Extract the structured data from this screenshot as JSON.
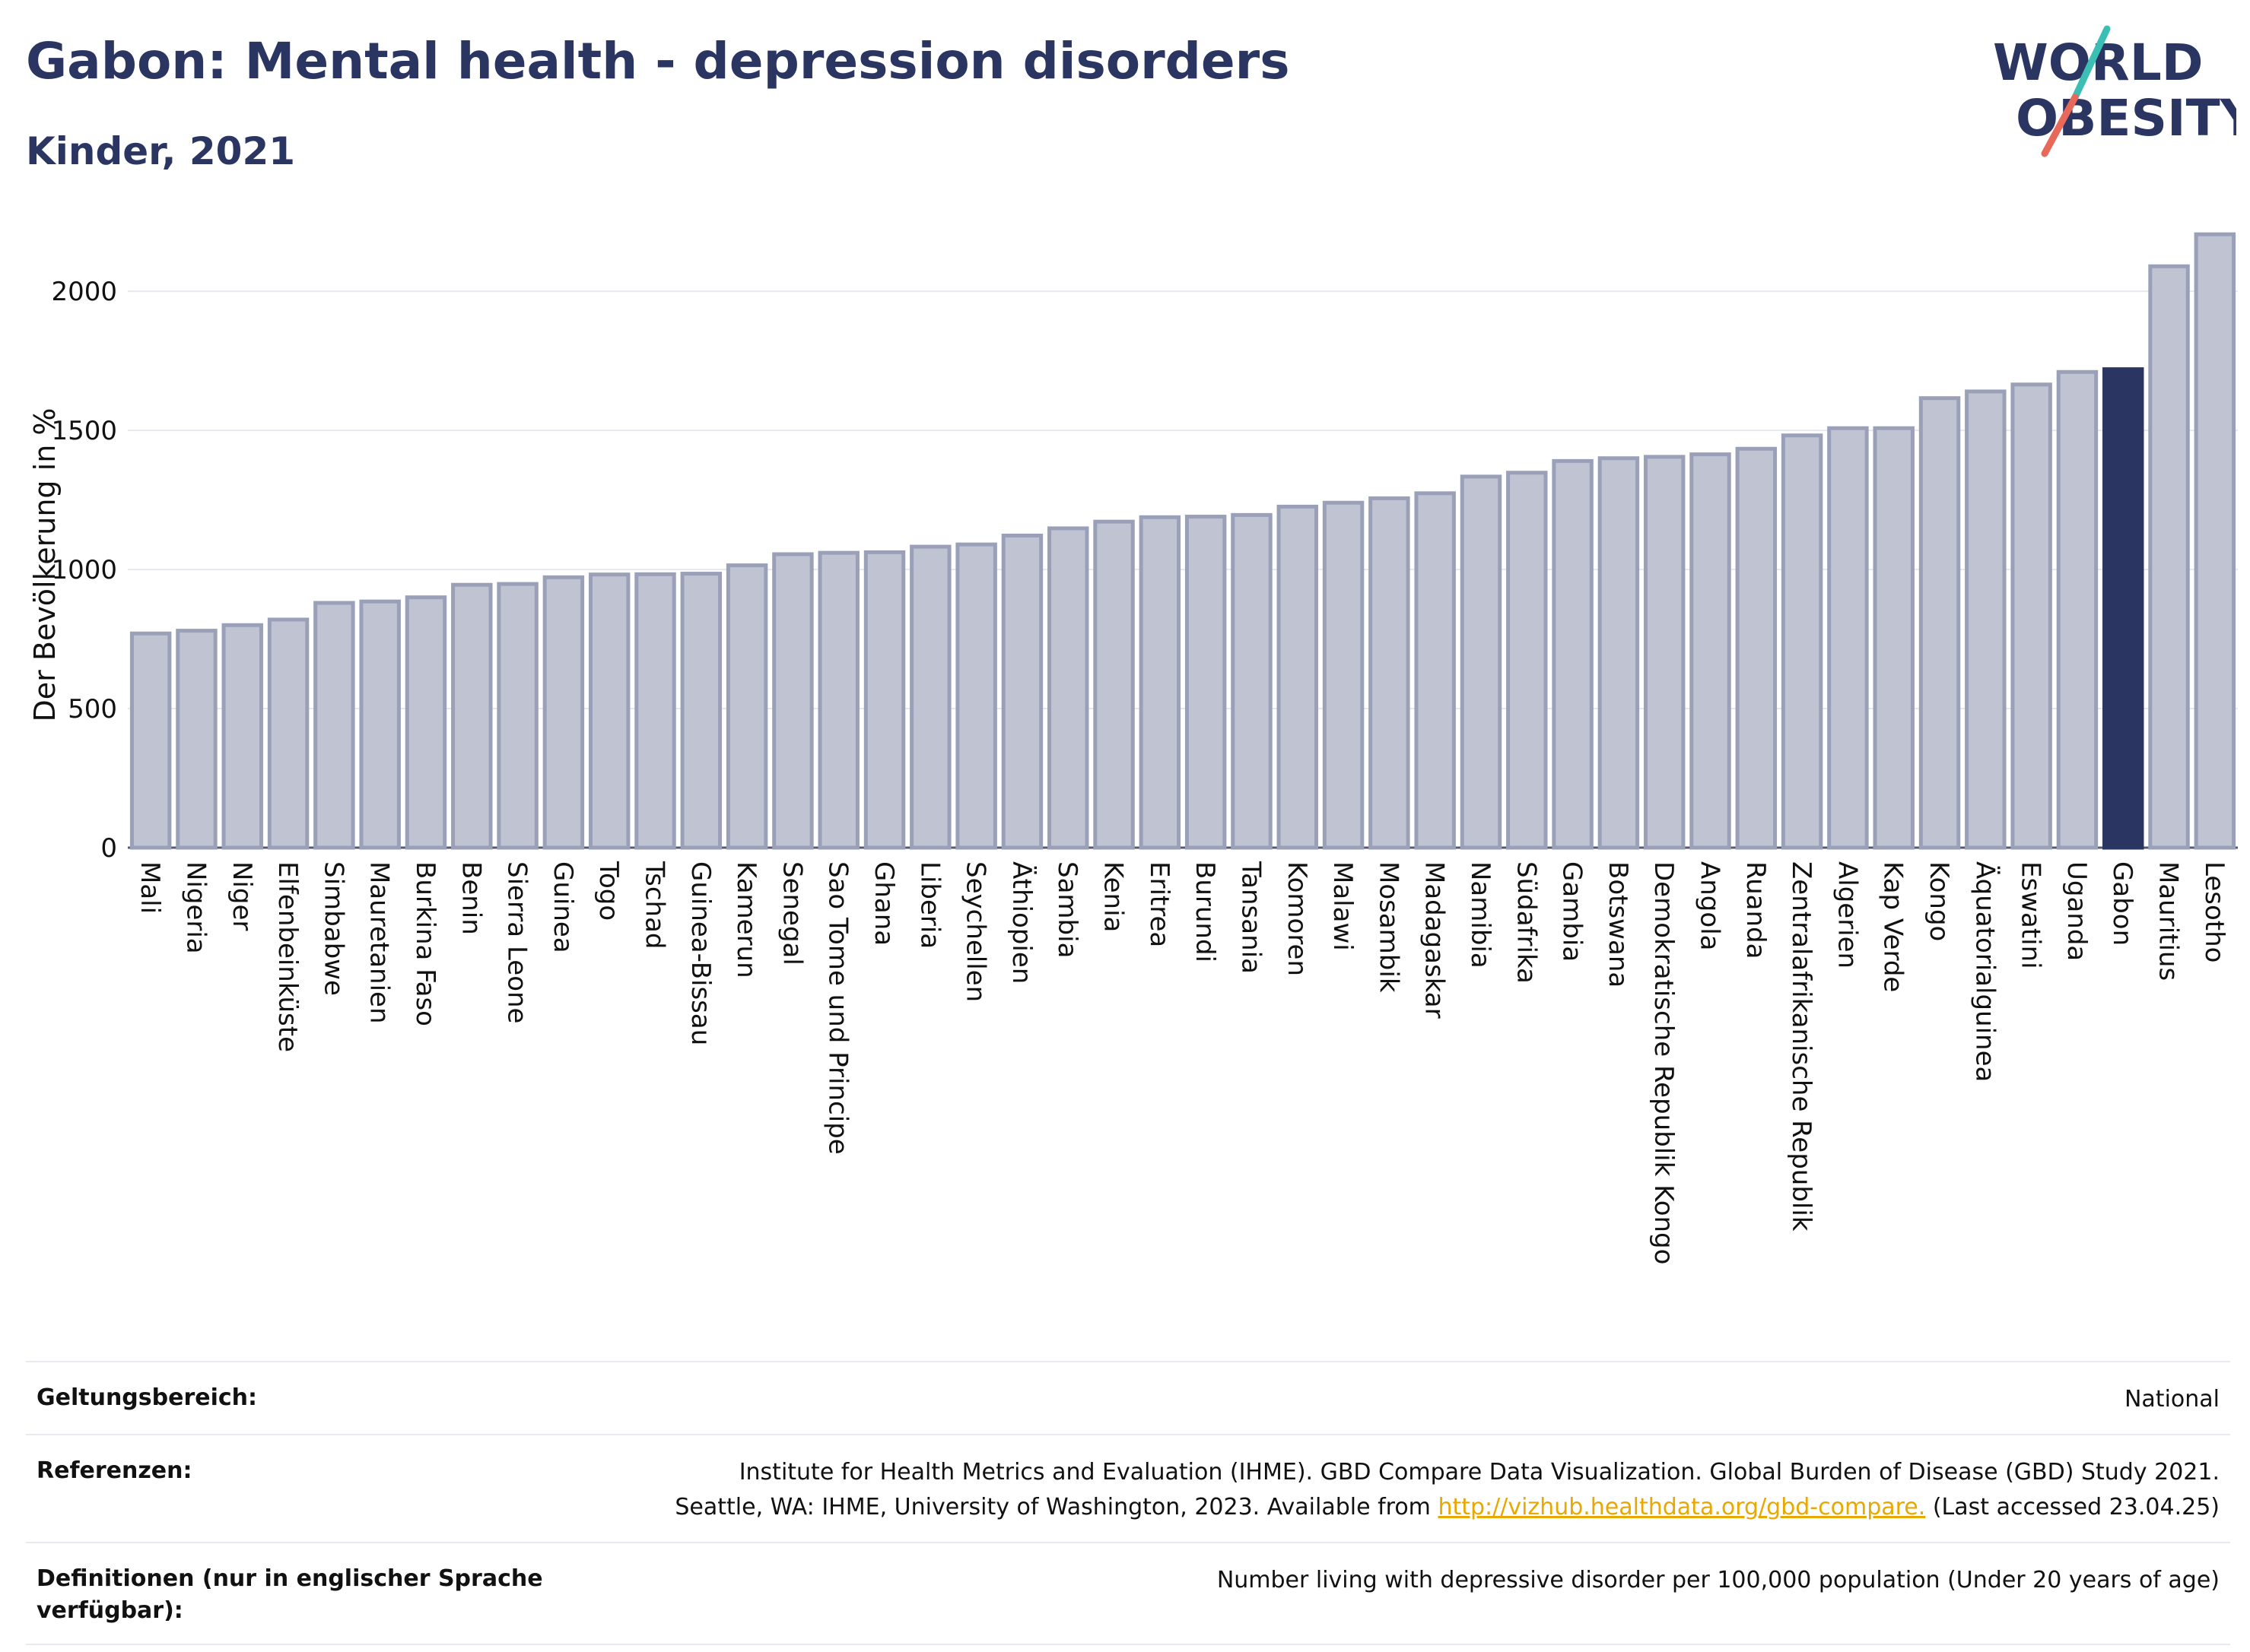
{
  "header": {
    "title": "Gabon: Mental health - depression disorders",
    "subtitle": "Kinder, 2021"
  },
  "logo": {
    "line1": "WORLD",
    "line2": "OBESITY"
  },
  "colors": {
    "bar_default": "#bfc3d2",
    "bar_edge": "#9aa0b8",
    "bar_highlight": "#2b3561",
    "grid": "#e6e8ef",
    "logo_teal": "#3bbfb5",
    "logo_red": "#e8685a"
  },
  "chart_data": {
    "type": "bar",
    "title": "",
    "xlabel": "",
    "ylabel": "Der Bevölkerung in %",
    "ylim": [
      0,
      2200
    ],
    "yticks": [
      0,
      500,
      1000,
      1500,
      2000
    ],
    "grid": true,
    "highlight": "Gabon",
    "categories": [
      "Mali",
      "Nigeria",
      "Niger",
      "Elfenbeinküste",
      "Simbabwe",
      "Mauretanien",
      "Burkina Faso",
      "Benin",
      "Sierra Leone",
      "Guinea",
      "Togo",
      "Tschad",
      "Guinea-Bissau",
      "Kamerun",
      "Senegal",
      "Sao Tome und Principe",
      "Ghana",
      "Liberia",
      "Seychellen",
      "Äthiopien",
      "Sambia",
      "Kenia",
      "Eritrea",
      "Burundi",
      "Tansania",
      "Komoren",
      "Malawi",
      "Mosambik",
      "Madagaskar",
      "Namibia",
      "Südafrika",
      "Gambia",
      "Botswana",
      "Demokratische Republik Kongo",
      "Angola",
      "Ruanda",
      "Zentralafrikanische Republik",
      "Algerien",
      "Kap Verde",
      "Kongo",
      "Äquatorialguinea",
      "Eswatini",
      "Uganda",
      "Gabon",
      "Mauritius",
      "Lesotho"
    ],
    "values": [
      770,
      780,
      800,
      820,
      880,
      885,
      900,
      945,
      948,
      972,
      982,
      983,
      985,
      1015,
      1055,
      1060,
      1062,
      1082,
      1090,
      1122,
      1148,
      1172,
      1188,
      1190,
      1196,
      1226,
      1240,
      1256,
      1274,
      1334,
      1348,
      1390,
      1400,
      1405,
      1414,
      1434,
      1482,
      1508,
      1508,
      1616,
      1640,
      1665,
      1710,
      1720,
      2090,
      2205
    ]
  },
  "info": {
    "scope_label": "Geltungsbereich:",
    "scope_value": "National",
    "ref_label": "Referenzen:",
    "ref_line1": "Institute for Health Metrics and Evaluation (IHME). GBD Compare Data Visualization. Global Burden of Disease (GBD) Study 2021.",
    "ref_line2_pre": "Seattle, WA: IHME, University of Washington, 2023. Available from ",
    "ref_link": "http://vizhub.healthdata.org/gbd-compare.",
    "ref_line2_post": " (Last accessed 23.04.25)",
    "def_label": "Definitionen (nur in englischer Sprache verfügbar):",
    "def_value": "Number living with depressive disorder per 100,000 population (Under 20 years of age)"
  }
}
